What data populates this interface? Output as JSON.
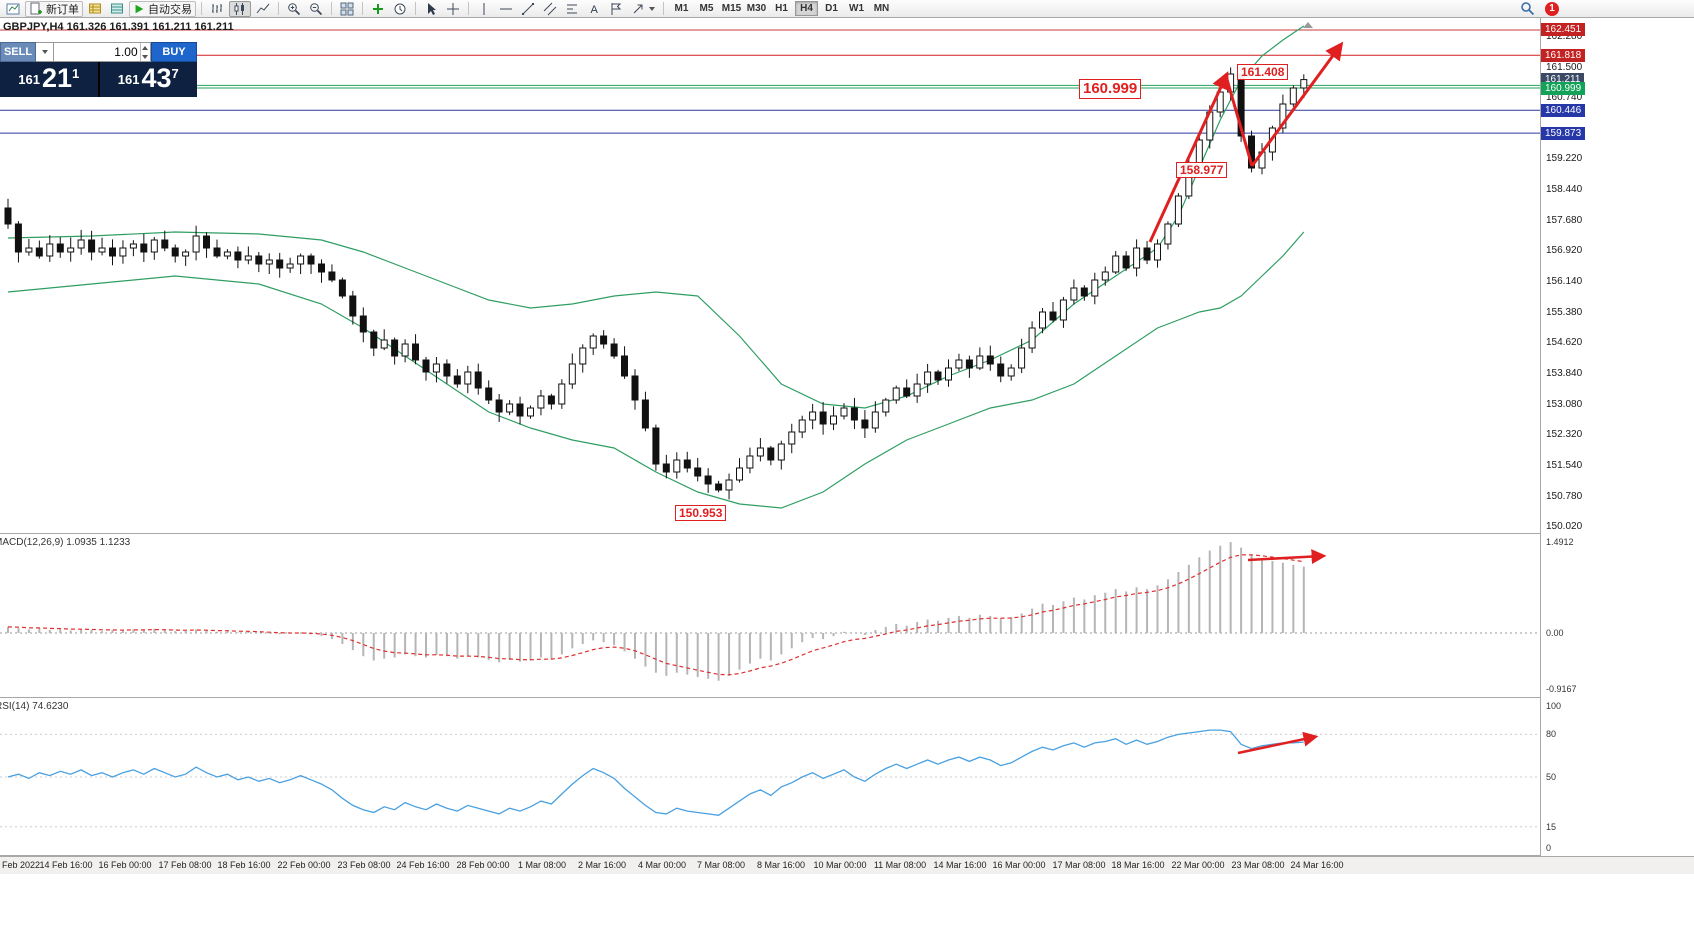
{
  "toolbar": {
    "new_order_label": "新订单",
    "auto_trading_label": "自动交易",
    "timeframe_labels": [
      "M1",
      "M5",
      "M15",
      "M30",
      "H1",
      "H4",
      "D1",
      "W1",
      "MN"
    ],
    "active_timeframe": "H4",
    "notification_count": "1"
  },
  "chart_header": {
    "title": "GBPJPY,H4  161.326 161.391 161.211 161.211"
  },
  "order_panel": {
    "sell_label": "SELL",
    "buy_label": "BUY",
    "volume": "1.00",
    "sell_price_prefix": "161",
    "sell_price_main": "21",
    "sell_price_sup": "1",
    "buy_price_prefix": "161",
    "buy_price_main": "43",
    "buy_price_sup": "7"
  },
  "annotations": {
    "resistance_label": "160.999",
    "swing_high_label": "161.408",
    "swing_low_label": "158.977",
    "bottom_label": "150.953"
  },
  "indicator_labels": {
    "macd": "MACD(12,26,9) 1.0935 1.1233",
    "rsi": "RSI(14) 74.6230"
  },
  "colors": {
    "buy_blue": "#1f66cc",
    "sell_blue": "#6b8cb8",
    "quote_panel_dark": "#0e2140",
    "band_green": "#2f9e63",
    "annotation_red": "#e02020",
    "rsi_blue": "#4aa0e0",
    "macd_hist_grey": "#b5b5b5",
    "macd_signal_red": "#e03030",
    "marker_red": "#c32222",
    "marker_green": "#12a258",
    "marker_blue": "#2638a8",
    "marker_current": "#3c4a66"
  },
  "price_axis": {
    "ticks": [
      "162.280",
      "161.500",
      "160.740",
      "159.220",
      "158.440",
      "157.680",
      "156.920",
      "156.140",
      "155.380",
      "154.620",
      "153.840",
      "153.080",
      "152.320",
      "151.540",
      "150.780",
      "150.020"
    ],
    "markers": [
      {
        "text": "162.451",
        "type": "red"
      },
      {
        "text": "161.818",
        "type": "red"
      },
      {
        "text": "161.211",
        "type": "current"
      },
      {
        "text": "160.999",
        "type": "green"
      },
      {
        "text": "160.446",
        "type": "blue"
      },
      {
        "text": "159.873",
        "type": "blue"
      }
    ]
  },
  "macd_axis": [
    "1.4912",
    "0.00",
    "-0.9167"
  ],
  "rsi_axis": [
    "100",
    "80",
    "50",
    "15",
    "0"
  ],
  "time_axis": [
    "Feb 2022",
    "14 Feb 16:00",
    "16 Feb 00:00",
    "17 Feb 08:00",
    "18 Feb 16:00",
    "22 Feb 00:00",
    "23 Feb 08:00",
    "24 Feb 16:00",
    "28 Feb 00:00",
    "1 Mar 08:00",
    "2 Mar 16:00",
    "4 Mar 00:00",
    "7 Mar 08:00",
    "8 Mar 16:00",
    "10 Mar 00:00",
    "11 Mar 08:00",
    "14 Mar 16:00",
    "16 Mar 00:00",
    "17 Mar 08:00",
    "18 Mar 16:00",
    "22 Mar 00:00",
    "23 Mar 08:00",
    "24 Mar 16:00"
  ],
  "chart_data": [
    {
      "type": "candlestick",
      "symbol": "GBPJPY",
      "timeframe": "H4",
      "ohlc_display": [
        161.326,
        161.391,
        161.211,
        161.211
      ],
      "ylim": [
        149.875,
        162.75
      ],
      "closes": [
        157.6,
        156.9,
        157.0,
        156.8,
        157.1,
        156.9,
        157.0,
        157.2,
        156.9,
        157.0,
        156.8,
        157.0,
        157.1,
        156.9,
        157.2,
        157.0,
        156.8,
        156.9,
        157.3,
        157.0,
        156.8,
        156.9,
        156.7,
        156.8,
        156.6,
        156.7,
        156.5,
        156.6,
        156.8,
        156.6,
        156.4,
        156.2,
        155.8,
        155.3,
        154.9,
        154.5,
        154.7,
        154.3,
        154.6,
        154.2,
        153.9,
        154.1,
        153.8,
        153.6,
        153.9,
        153.5,
        153.2,
        152.9,
        153.1,
        152.8,
        153.0,
        153.3,
        153.1,
        153.6,
        154.1,
        154.5,
        154.8,
        154.6,
        154.3,
        153.8,
        153.2,
        152.5,
        151.6,
        151.4,
        151.7,
        151.5,
        151.3,
        151.1,
        150.95,
        151.2,
        151.5,
        151.8,
        152.0,
        151.7,
        152.1,
        152.4,
        152.7,
        152.9,
        152.6,
        152.8,
        153.0,
        152.7,
        152.5,
        152.9,
        153.2,
        153.5,
        153.3,
        153.6,
        153.9,
        153.7,
        154.0,
        154.2,
        154.0,
        154.3,
        154.1,
        153.8,
        154.0,
        154.5,
        155.0,
        155.4,
        155.2,
        155.7,
        156.0,
        155.8,
        156.2,
        156.4,
        156.8,
        156.5,
        157.0,
        156.7,
        157.1,
        157.6,
        158.3,
        159.0,
        159.7,
        160.4,
        160.9,
        161.35,
        159.8,
        159.0,
        159.4,
        160.0,
        160.6,
        161.0,
        161.21
      ],
      "bollinger_upper": [
        [
          0,
          157.25
        ],
        [
          8,
          157.3
        ],
        [
          16,
          157.4
        ],
        [
          24,
          157.35
        ],
        [
          30,
          157.2
        ],
        [
          34,
          156.9
        ],
        [
          38,
          156.5
        ],
        [
          42,
          156.1
        ],
        [
          46,
          155.7
        ],
        [
          50,
          155.5
        ],
        [
          54,
          155.6
        ],
        [
          58,
          155.8
        ],
        [
          62,
          155.9
        ],
        [
          66,
          155.8
        ],
        [
          70,
          154.8
        ],
        [
          74,
          153.6
        ],
        [
          78,
          153.1
        ],
        [
          82,
          153.0
        ],
        [
          86,
          153.3
        ],
        [
          90,
          153.8
        ],
        [
          94,
          154.2
        ],
        [
          98,
          154.7
        ],
        [
          102,
          155.6
        ],
        [
          106,
          156.3
        ],
        [
          110,
          157.0
        ],
        [
          112,
          157.8
        ],
        [
          114,
          159.0
        ],
        [
          116,
          160.2
        ],
        [
          118,
          161.2
        ],
        [
          120,
          161.8
        ],
        [
          122,
          162.2
        ],
        [
          124,
          162.55
        ]
      ],
      "bollinger_lower": [
        [
          0,
          155.9
        ],
        [
          8,
          156.1
        ],
        [
          16,
          156.3
        ],
        [
          24,
          156.1
        ],
        [
          30,
          155.6
        ],
        [
          34,
          155.0
        ],
        [
          38,
          154.3
        ],
        [
          42,
          153.6
        ],
        [
          46,
          152.9
        ],
        [
          50,
          152.5
        ],
        [
          54,
          152.2
        ],
        [
          58,
          152.0
        ],
        [
          62,
          151.4
        ],
        [
          66,
          150.9
        ],
        [
          70,
          150.6
        ],
        [
          74,
          150.5
        ],
        [
          78,
          150.9
        ],
        [
          82,
          151.6
        ],
        [
          86,
          152.2
        ],
        [
          90,
          152.6
        ],
        [
          94,
          153.0
        ],
        [
          98,
          153.2
        ],
        [
          102,
          153.6
        ],
        [
          106,
          154.3
        ],
        [
          110,
          155.0
        ],
        [
          112,
          155.2
        ],
        [
          114,
          155.4
        ],
        [
          116,
          155.5
        ],
        [
          118,
          155.8
        ],
        [
          120,
          156.3
        ],
        [
          122,
          156.8
        ],
        [
          124,
          157.4
        ]
      ],
      "hlines": [
        {
          "price": 162.451,
          "color": "#c93a3a"
        },
        {
          "price": 161.818,
          "color": "#d02020"
        },
        {
          "price": 161.065,
          "color": "#25a35c"
        },
        {
          "price": 160.999,
          "color": "#25a35c"
        },
        {
          "price": 160.446,
          "color": "#2a3a9e"
        },
        {
          "price": 159.873,
          "color": "#2a3a9e"
        }
      ]
    },
    {
      "type": "bar",
      "name": "MACD(12,26,9)",
      "values_display": [
        1.0935,
        1.1233
      ],
      "ylim": [
        -0.9167,
        1.4912
      ],
      "yticks": [
        1.4912,
        0.0,
        -0.9167
      ],
      "values": [
        0.1,
        0.08,
        0.06,
        0.08,
        0.05,
        0.06,
        0.04,
        0.06,
        0.05,
        0.03,
        0.05,
        0.04,
        0.06,
        0.05,
        0.07,
        0.05,
        0.03,
        0.04,
        0.06,
        0.04,
        0.02,
        0.03,
        0.01,
        0.02,
        0.0,
        -0.01,
        -0.02,
        -0.01,
        0.0,
        -0.02,
        -0.05,
        -0.1,
        -0.18,
        -0.28,
        -0.38,
        -0.45,
        -0.42,
        -0.4,
        -0.35,
        -0.38,
        -0.4,
        -0.36,
        -0.38,
        -0.42,
        -0.38,
        -0.4,
        -0.44,
        -0.48,
        -0.44,
        -0.47,
        -0.45,
        -0.4,
        -0.42,
        -0.35,
        -0.25,
        -0.18,
        -0.12,
        -0.15,
        -0.2,
        -0.3,
        -0.42,
        -0.55,
        -0.65,
        -0.7,
        -0.65,
        -0.68,
        -0.72,
        -0.75,
        -0.78,
        -0.7,
        -0.6,
        -0.5,
        -0.42,
        -0.45,
        -0.35,
        -0.25,
        -0.15,
        -0.08,
        -0.1,
        -0.05,
        0.02,
        0.0,
        -0.03,
        0.05,
        0.1,
        0.15,
        0.12,
        0.18,
        0.22,
        0.2,
        0.25,
        0.28,
        0.25,
        0.3,
        0.28,
        0.24,
        0.26,
        0.32,
        0.4,
        0.48,
        0.46,
        0.52,
        0.58,
        0.55,
        0.62,
        0.66,
        0.72,
        0.68,
        0.75,
        0.72,
        0.78,
        0.88,
        1.0,
        1.12,
        1.24,
        1.35,
        1.43,
        1.49,
        1.4,
        1.28,
        1.22,
        1.18,
        1.15,
        1.12,
        1.09
      ]
    },
    {
      "type": "line",
      "name": "RSI(14)",
      "current": 74.623,
      "ylim": [
        0,
        100
      ],
      "levels": [
        80,
        50,
        15
      ],
      "values": [
        50,
        52,
        49,
        53,
        51,
        54,
        52,
        55,
        51,
        53,
        50,
        53,
        55,
        52,
        56,
        53,
        50,
        52,
        57,
        53,
        50,
        52,
        48,
        50,
        47,
        49,
        46,
        48,
        51,
        48,
        45,
        41,
        35,
        30,
        27,
        25,
        29,
        27,
        32,
        29,
        27,
        31,
        28,
        26,
        30,
        28,
        26,
        24,
        28,
        26,
        29,
        33,
        31,
        38,
        45,
        51,
        56,
        53,
        49,
        42,
        36,
        30,
        25,
        24,
        28,
        26,
        25,
        24,
        23,
        28,
        33,
        38,
        41,
        37,
        43,
        46,
        50,
        53,
        49,
        52,
        55,
        50,
        47,
        52,
        56,
        59,
        56,
        59,
        62,
        59,
        62,
        64,
        61,
        64,
        62,
        58,
        60,
        64,
        68,
        71,
        69,
        72,
        74,
        71,
        74,
        75,
        77,
        73,
        76,
        73,
        75,
        78,
        80,
        81,
        82,
        83,
        83,
        82,
        73,
        70,
        72,
        73,
        74,
        74,
        74.6
      ]
    }
  ]
}
